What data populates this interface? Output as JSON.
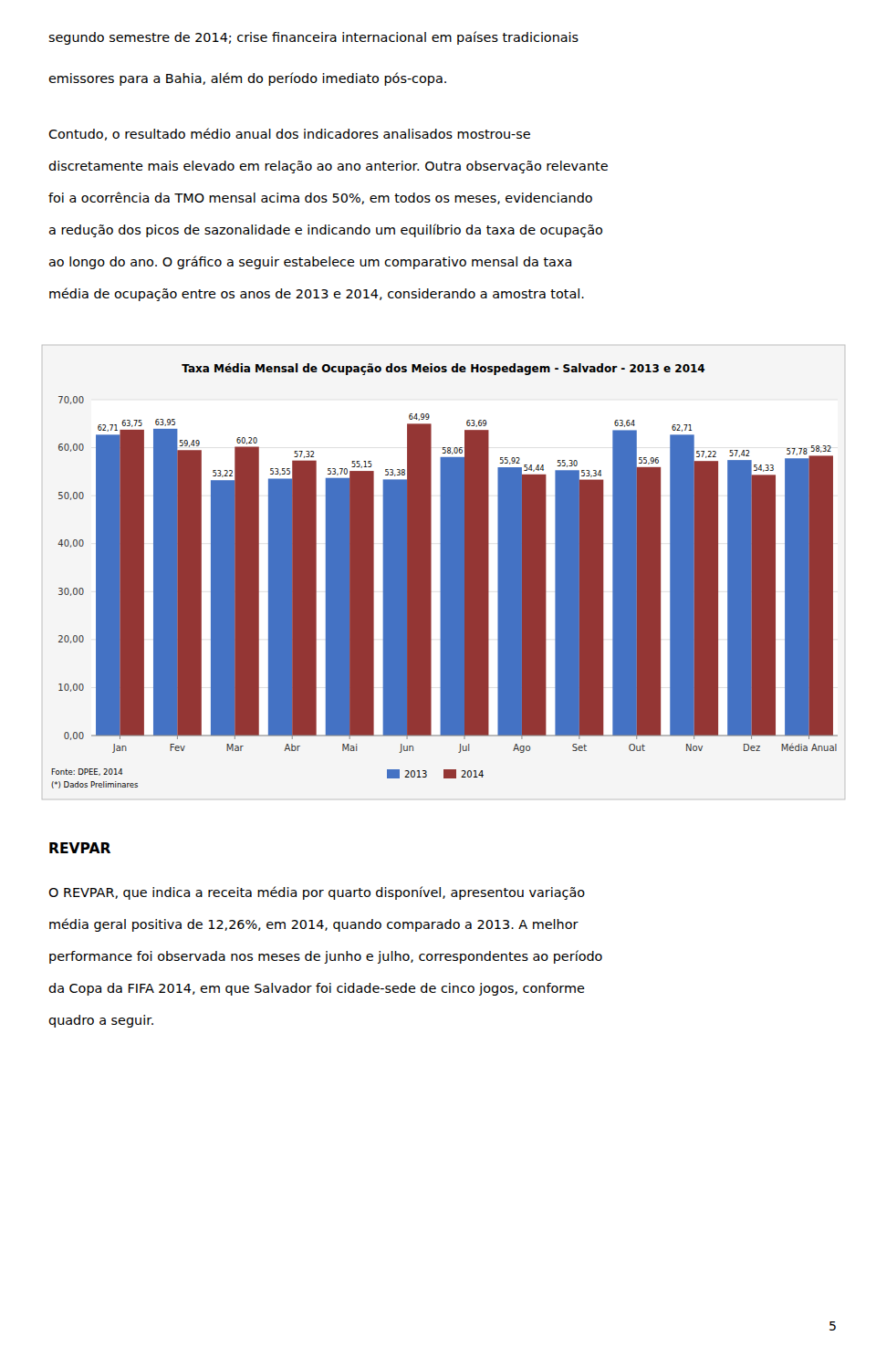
{
  "text_before": [
    "segundo semestre de 2014; crise financeira internacional em países tradicionais",
    "emissores para a Bahia, além do período imediato pós-copa."
  ],
  "text_middle": [
    "Contudo, o resultado médio anual dos indicadores analisados mostrou-se",
    "discretamente mais elevado em relação ao ano anterior. Outra observação relevante",
    "foi a ocorrência da TMO mensal acima dos 50%, em todos os meses, evidenciando",
    "a redução dos picos de sazonalidade e indicando um equilíbrio da taxa de ocupação",
    "ao longo do ano. O gráfico a seguir estabelece um comparativo mensal da taxa",
    "média de ocupação entre os anos de 2013 e 2014, considerando a amostra total."
  ],
  "heading": "REVPAR",
  "text_after": [
    "O REVPAR, que indica a receita média por quarto disponível, apresentou variação",
    "média geral positiva de 12,26%, em 2014, quando comparado a 2013. A melhor",
    "performance foi observada nos meses de junho e julho, correspondentes ao período",
    "da Copa da FIFA 2014, em que Salvador foi cidade-sede de cinco jogos, conforme",
    "quadro a seguir."
  ],
  "page_number": "5",
  "chart_data": {
    "type": "bar",
    "title": "Taxa Média Mensal de Ocupação dos Meios de Hospedagem - Salvador - 2013 e 2014",
    "categories": [
      "Jan",
      "Fev",
      "Mar",
      "Abr",
      "Mai",
      "Jun",
      "Jul",
      "Ago",
      "Set",
      "Out",
      "Nov",
      "Dez",
      "Média Anual"
    ],
    "series": [
      {
        "name": "2013",
        "color": "#4472C4",
        "values": [
          62.71,
          63.95,
          53.22,
          53.55,
          53.7,
          53.38,
          58.06,
          55.92,
          55.3,
          63.64,
          62.71,
          57.42,
          57.78
        ],
        "value_labels": [
          "62,71",
          "63,95",
          "53,22",
          "53,55",
          "53,70",
          "53,38",
          "58,06",
          "55,92",
          "55,30",
          "63,64",
          "62,71",
          "57,42",
          "57,78"
        ]
      },
      {
        "name": "2014",
        "color": "#943634",
        "values": [
          63.75,
          59.49,
          60.2,
          57.32,
          55.15,
          64.99,
          63.69,
          54.44,
          53.34,
          55.96,
          57.22,
          54.33,
          58.32
        ],
        "value_labels": [
          "63,75",
          "59,49",
          "60,20",
          "57,32",
          "55,15",
          "64,99",
          "63,69",
          "54,44",
          "53,34",
          "55,96",
          "57,22",
          "54,33",
          "58,32"
        ]
      }
    ],
    "ylim": [
      0,
      70
    ],
    "yticks": [
      {
        "value": 0,
        "label": "0,00"
      },
      {
        "value": 10,
        "label": "10,00"
      },
      {
        "value": 20,
        "label": "20,00"
      },
      {
        "value": 30,
        "label": "30,00"
      },
      {
        "value": 40,
        "label": "40,00"
      },
      {
        "value": 50,
        "label": "50,00"
      },
      {
        "value": 60,
        "label": "60,00"
      },
      {
        "value": 70,
        "label": "70,00"
      }
    ],
    "grid": true,
    "data_labels": true,
    "legend": "bottom",
    "annotations": [
      "Fonte: DPEE, 2014",
      "(*) Dados Preliminares"
    ]
  }
}
